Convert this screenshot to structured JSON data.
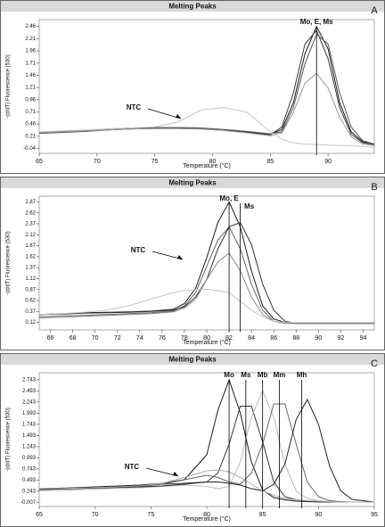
{
  "chart_data": [
    {
      "type": "line",
      "title": "Melting Peaks",
      "panel": "A",
      "xlabel": "Temperature (°C)",
      "ylabel": "-(d/dT) Fluorescence (530)",
      "xlim": [
        65,
        94
      ],
      "xticks": [
        65,
        70,
        75,
        80,
        85,
        90
      ],
      "ylim": [
        -0.14,
        2.6
      ],
      "yticks": [
        -0.04,
        0.21,
        0.46,
        0.71,
        0.96,
        1.21,
        1.46,
        1.71,
        1.96,
        2.21,
        2.46
      ],
      "x": [
        65,
        67,
        69,
        71,
        73,
        75,
        77,
        79,
        81,
        83,
        85,
        86,
        87,
        88,
        89,
        90,
        91,
        92,
        93,
        94
      ],
      "series": [
        {
          "color": "#1a1a1a",
          "values": [
            0.28,
            0.3,
            0.32,
            0.35,
            0.37,
            0.38,
            0.38,
            0.37,
            0.34,
            0.3,
            0.25,
            0.35,
            0.9,
            1.9,
            2.46,
            2.0,
            0.9,
            0.3,
            0.1,
            0.05
          ]
        },
        {
          "color": "#3a3a3a",
          "values": [
            0.27,
            0.29,
            0.31,
            0.34,
            0.36,
            0.37,
            0.37,
            0.36,
            0.33,
            0.29,
            0.24,
            0.4,
            1.1,
            2.1,
            2.38,
            1.8,
            0.8,
            0.25,
            0.08,
            0.04
          ]
        },
        {
          "color": "#555555",
          "values": [
            0.29,
            0.31,
            0.33,
            0.36,
            0.38,
            0.39,
            0.39,
            0.38,
            0.35,
            0.31,
            0.26,
            0.3,
            0.8,
            1.7,
            2.3,
            2.1,
            1.1,
            0.4,
            0.12,
            0.05
          ]
        },
        {
          "color": "#999999",
          "values": [
            0.28,
            0.3,
            0.32,
            0.34,
            0.36,
            0.37,
            0.37,
            0.36,
            0.33,
            0.28,
            0.22,
            0.28,
            0.7,
            1.3,
            1.5,
            1.2,
            0.6,
            0.2,
            0.05,
            0.02
          ]
        },
        {
          "color": "#c4c4c4",
          "values": [
            0.3,
            0.32,
            0.34,
            0.36,
            0.38,
            0.4,
            0.5,
            0.75,
            0.8,
            0.7,
            0.3,
            0.15,
            0.08,
            0.05,
            0.04,
            0.03,
            0.02,
            0.02,
            0.0,
            -0.02
          ]
        }
      ],
      "markers": [
        {
          "x": 89,
          "label": "Mo, E, Ms"
        }
      ],
      "annotations": [
        "NTC"
      ]
    },
    {
      "type": "line",
      "title": "Melting Peaks",
      "panel": "B",
      "xlabel": "Temperature (°C)",
      "ylabel": "-(d/dT) Fluorescence (530)",
      "xlim": [
        65,
        95
      ],
      "xticks": [
        66,
        68,
        70,
        72,
        74,
        76,
        78,
        80,
        82,
        84,
        86,
        88,
        90,
        92,
        94
      ],
      "ylim": [
        -0.05,
        3.0
      ],
      "yticks": [
        0.12,
        0.37,
        0.62,
        0.87,
        1.12,
        1.37,
        1.62,
        1.87,
        2.12,
        2.37,
        2.62,
        2.87
      ],
      "x": [
        65,
        67,
        69,
        71,
        73,
        75,
        77,
        78,
        79,
        80,
        81,
        82,
        83,
        84,
        85,
        86,
        87,
        88,
        90,
        92,
        95
      ],
      "series": [
        {
          "color": "#1a1a1a",
          "values": [
            0.3,
            0.32,
            0.34,
            0.35,
            0.36,
            0.38,
            0.42,
            0.55,
            0.9,
            1.6,
            2.4,
            2.87,
            2.3,
            1.3,
            0.5,
            0.2,
            0.12,
            0.1,
            0.1,
            0.1,
            0.1
          ]
        },
        {
          "color": "#666666",
          "values": [
            0.25,
            0.27,
            0.28,
            0.3,
            0.32,
            0.34,
            0.38,
            0.5,
            0.8,
            1.4,
            2.0,
            2.3,
            1.8,
            1.0,
            0.4,
            0.15,
            0.1,
            0.1,
            0.1,
            0.1,
            0.1
          ]
        },
        {
          "color": "#333333",
          "values": [
            0.3,
            0.31,
            0.33,
            0.34,
            0.35,
            0.37,
            0.4,
            0.48,
            0.7,
            1.1,
            1.8,
            2.3,
            2.4,
            1.9,
            1.0,
            0.4,
            0.15,
            0.1,
            0.1,
            0.1,
            0.1
          ]
        },
        {
          "color": "#888888",
          "values": [
            0.22,
            0.24,
            0.26,
            0.28,
            0.3,
            0.32,
            0.36,
            0.45,
            0.65,
            1.1,
            1.5,
            1.7,
            1.3,
            0.7,
            0.3,
            0.15,
            0.1,
            0.1,
            0.1,
            0.1,
            0.1
          ]
        },
        {
          "color": "#c4c4c4",
          "values": [
            0.3,
            0.32,
            0.35,
            0.4,
            0.5,
            0.65,
            0.8,
            0.85,
            0.87,
            0.88,
            0.85,
            0.8,
            0.6,
            0.4,
            0.25,
            0.15,
            0.12,
            0.12,
            0.12,
            0.12,
            0.12
          ]
        }
      ],
      "markers": [
        {
          "x": 82,
          "label": "Mo, E"
        },
        {
          "x": 83,
          "label": "Ms"
        }
      ],
      "annotations": [
        "NTC"
      ]
    },
    {
      "type": "line",
      "title": "Melting Peaks",
      "panel": "C",
      "xlabel": "Temperature (°C)",
      "ylabel": "-(d/dT) Fluorescence (530)",
      "xlim": [
        65,
        95
      ],
      "xticks": [
        65,
        70,
        75,
        80,
        85,
        90,
        95
      ],
      "ylim": [
        -0.1,
        2.9
      ],
      "yticks": [
        -0.007,
        0.243,
        0.493,
        0.743,
        0.993,
        1.243,
        1.493,
        1.743,
        1.993,
        2.243,
        2.493,
        2.743
      ],
      "x": [
        65,
        68,
        71,
        74,
        76,
        78,
        80,
        81,
        82,
        83,
        84,
        85,
        86,
        87,
        88,
        89,
        90,
        91,
        92,
        93,
        95
      ],
      "series": [
        {
          "color": "#1a1a1a",
          "values": [
            0.3,
            0.32,
            0.35,
            0.38,
            0.42,
            0.5,
            1.06,
            2.06,
            2.74,
            2.0,
            0.9,
            0.27,
            0.1,
            0.05,
            0.02,
            0.01,
            0,
            0,
            0,
            0,
            0
          ]
        },
        {
          "color": "#333333",
          "values": [
            0.28,
            0.3,
            0.33,
            0.36,
            0.4,
            0.42,
            0.45,
            0.65,
            1.3,
            2.15,
            2.15,
            1.35,
            0.45,
            0.12,
            0.05,
            0.02,
            0,
            0,
            0,
            0,
            0
          ]
        },
        {
          "color": "#bbbbbb",
          "values": [
            0.25,
            0.27,
            0.3,
            0.32,
            0.35,
            0.38,
            0.35,
            0.3,
            0.35,
            0.9,
            1.9,
            2.5,
            1.9,
            0.85,
            0.25,
            0.08,
            0.03,
            0.01,
            0,
            0,
            0
          ]
        },
        {
          "color": "#666666",
          "values": [
            0.3,
            0.31,
            0.33,
            0.35,
            0.4,
            0.5,
            0.6,
            0.55,
            0.45,
            0.4,
            0.65,
            1.3,
            2.2,
            2.2,
            1.3,
            0.45,
            0.12,
            0.03,
            0.01,
            0,
            0
          ]
        },
        {
          "color": "#222222",
          "values": [
            0.28,
            0.3,
            0.32,
            0.34,
            0.36,
            0.4,
            0.45,
            0.45,
            0.42,
            0.38,
            0.3,
            0.25,
            0.4,
            0.85,
            1.85,
            2.3,
            1.75,
            0.8,
            0.25,
            0.06,
            0
          ]
        },
        {
          "color": "#aaaaaa",
          "values": [
            0.3,
            0.31,
            0.33,
            0.36,
            0.42,
            0.55,
            0.7,
            0.72,
            0.68,
            0.55,
            0.4,
            0.25,
            0.15,
            0.08,
            0.05,
            0.03,
            0.02,
            0.01,
            0,
            0,
            0
          ]
        }
      ],
      "markers": [
        {
          "x": 82,
          "label": "Mo"
        },
        {
          "x": 83.5,
          "label": "Ms"
        },
        {
          "x": 85,
          "label": "Mb"
        },
        {
          "x": 86.5,
          "label": "Mm"
        },
        {
          "x": 88.5,
          "label": "Mh"
        }
      ],
      "annotations": [
        "NTC"
      ]
    }
  ]
}
